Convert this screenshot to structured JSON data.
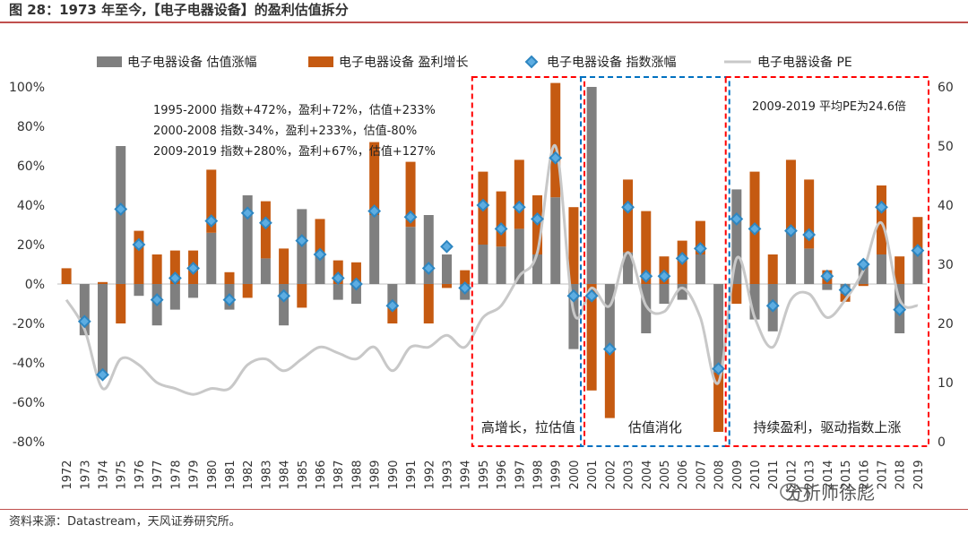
{
  "figure_title": "图 28：1973 年至今,【电子电器设备】的盈利估值拆分",
  "source": "资料来源：Datastream，天风证券研究所。",
  "watermark": "分析师徐彪",
  "colors": {
    "valuation": "#7f7f7f",
    "earnings": "#c55a11",
    "index": "#2e86c1",
    "index_fill": "#5dade2",
    "pe": "#c8c8c8",
    "box_red": "#ff0000",
    "box_blue": "#0070c0",
    "rule": "#c0504d"
  },
  "chart_data": {
    "type": "bar",
    "legend_position": "top",
    "grid": false,
    "categories": [
      "1972",
      "1973",
      "1974",
      "1975",
      "1976",
      "1977",
      "1978",
      "1979",
      "1980",
      "1981",
      "1982",
      "1983",
      "1984",
      "1985",
      "1986",
      "1987",
      "1988",
      "1989",
      "1990",
      "1991",
      "1992",
      "1993",
      "1994",
      "1995",
      "1996",
      "1997",
      "1998",
      "1999",
      "2000",
      "2001",
      "2002",
      "2003",
      "2004",
      "2005",
      "2006",
      "2007",
      "2008",
      "2009",
      "2010",
      "2011",
      "2012",
      "2013",
      "2014",
      "2015",
      "2016",
      "2017",
      "2018",
      "2019"
    ],
    "y_left": {
      "min": -80,
      "max": 100,
      "ticks": [
        "-80%",
        "-60%",
        "-40%",
        "-20%",
        "0%",
        "20%",
        "40%",
        "60%",
        "80%",
        "100%"
      ]
    },
    "y_right": {
      "min": 0,
      "max": 60,
      "ticks": [
        "0",
        "10",
        "20",
        "30",
        "40",
        "50",
        "60"
      ]
    },
    "series": [
      {
        "name": "电子电器设备 估值涨幅",
        "type": "bar",
        "axis": "left",
        "values": [
          0,
          -26,
          -46,
          70,
          -6,
          -21,
          -13,
          -7,
          26,
          -13,
          45,
          13,
          -21,
          38,
          15,
          -8,
          -10,
          35,
          -11,
          29,
          35,
          15,
          -8,
          20,
          19,
          28,
          15,
          44,
          -33,
          100,
          -34,
          16,
          -25,
          -10,
          -8,
          15,
          -45,
          48,
          -18,
          -24,
          26,
          18,
          -3,
          -5,
          10,
          15,
          -25,
          16
        ]
      },
      {
        "name": "电子电器设备 盈利增长",
        "type": "bar",
        "axis": "left",
        "values": [
          8,
          0,
          1,
          -20,
          27,
          15,
          17,
          17,
          32,
          6,
          -7,
          29,
          18,
          -12,
          18,
          12,
          11,
          37,
          -9,
          33,
          -20,
          -2,
          7,
          37,
          28,
          35,
          30,
          58,
          39,
          -54,
          -34,
          37,
          37,
          14,
          22,
          17,
          -30,
          -10,
          57,
          15,
          37,
          35,
          7,
          -4,
          -1,
          35,
          14,
          18
        ]
      },
      {
        "name": "电子电器设备 指数涨幅",
        "type": "scatter",
        "axis": "left",
        "values": [
          null,
          -19,
          -46,
          38,
          20,
          -8,
          3,
          8,
          32,
          -8,
          36,
          31,
          -6,
          22,
          15,
          3,
          0,
          37,
          -11,
          34,
          8,
          19,
          -2,
          40,
          28,
          39,
          33,
          64,
          -6,
          -6,
          -33,
          39,
          4,
          4,
          13,
          18,
          -43,
          33,
          28,
          -11,
          27,
          25,
          4,
          -3,
          10,
          39,
          -13,
          17
        ]
      },
      {
        "name": "电子电器设备 PE",
        "type": "line",
        "axis": "right",
        "values": [
          24,
          19,
          9,
          14,
          13,
          10,
          9,
          8,
          9,
          9,
          13,
          14,
          12,
          14,
          16,
          15,
          14,
          16,
          12,
          16,
          16,
          18,
          16,
          21,
          23,
          28,
          32,
          50,
          22,
          26,
          23,
          32,
          23,
          22,
          26,
          21,
          10,
          31,
          21,
          16,
          24,
          25,
          21,
          24,
          29,
          37,
          24,
          23
        ]
      }
    ],
    "annotations": [
      "1995-2000  指数+472%，盈利+72%，估值+233%",
      "2000-2008  指数-34%，盈利+233%，估值-80%",
      "2009-2019  指数+280%，盈利+67%，估值+127%",
      "2009-2019  平均PE为24.6倍"
    ],
    "boxes": [
      {
        "label": "高增长，拉估值",
        "from": "1995",
        "to": "2000",
        "color": "red"
      },
      {
        "label": "估值消化",
        "from": "2001",
        "to": "2008",
        "color": "blue"
      },
      {
        "label": "持续盈利，驱动指数上涨",
        "from": "2009",
        "to": "2019",
        "color": "red"
      }
    ]
  }
}
